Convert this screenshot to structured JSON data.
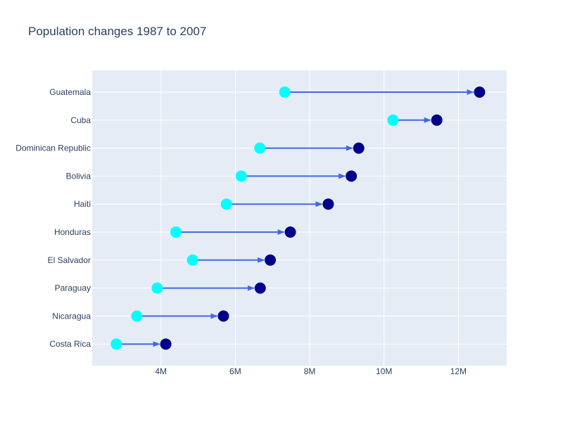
{
  "chart_data": {
    "type": "dumbbell",
    "title": "Population changes 1987 to 2007",
    "xlabel": "",
    "ylabel": "",
    "x_ticks": [
      4000000,
      6000000,
      8000000,
      10000000,
      12000000
    ],
    "x_tick_labels": [
      "4M",
      "6M",
      "8M",
      "10M",
      "12M"
    ],
    "xlim": [
      2150000,
      13300000
    ],
    "grid": true,
    "categories": [
      "Costa Rica",
      "Nicaragua",
      "Paraguay",
      "El Salvador",
      "Honduras",
      "Haiti",
      "Bolivia",
      "Dominican Republic",
      "Cuba",
      "Guatemala"
    ],
    "series": [
      {
        "values": [
          2800000,
          3350000,
          3900000,
          4850000,
          4400000,
          5760000,
          6160000,
          6660000,
          10240000,
          7330000
        ]
      },
      {
        "values": [
          4130000,
          5680000,
          6670000,
          6940000,
          7480000,
          8500000,
          9120000,
          9320000,
          11420000,
          12570000
        ]
      }
    ],
    "colors": {
      "start": "#00ffff",
      "end": "#00008b",
      "arrow": "#4169e1",
      "plot_bg": "#e5ecf6",
      "grid": "#ffffff",
      "text": "#2a3f5f"
    }
  }
}
